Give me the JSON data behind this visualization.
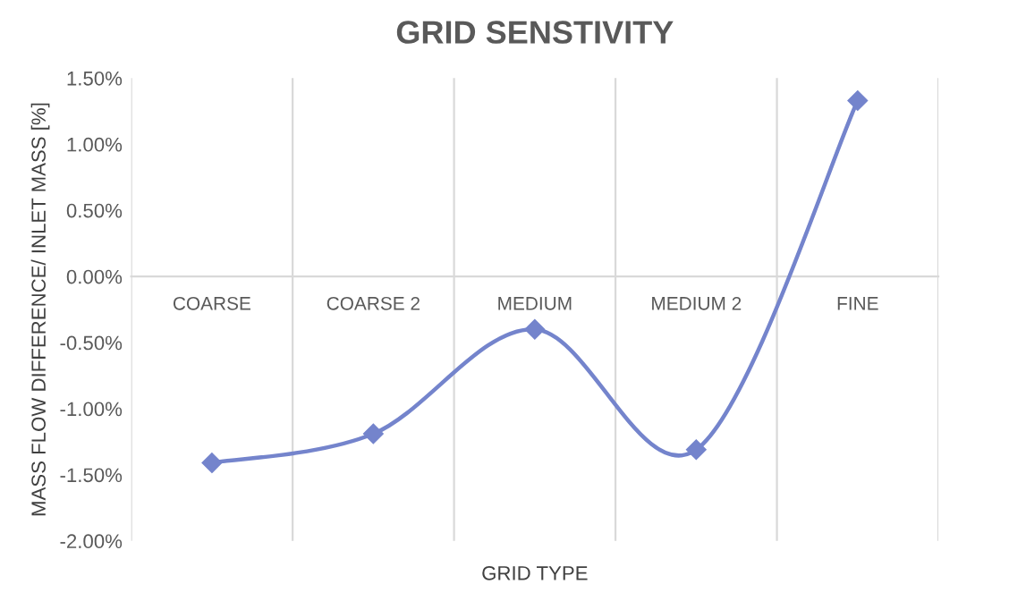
{
  "chart_data": {
    "type": "line",
    "title": "GRID SENSTIVITY",
    "xlabel": "GRID TYPE",
    "ylabel": "MASS FLOW DIFFERENCE/ INLET MASS [%]",
    "categories": [
      "COARSE",
      "COARSE 2",
      "MEDIUM",
      "MEDIUM 2",
      "FINE"
    ],
    "series": [
      {
        "color": "#7484cc",
        "values": [
          -1.41,
          -1.19,
          -0.4,
          -1.31,
          1.33
        ]
      }
    ],
    "ylim": [
      -2.0,
      1.5
    ],
    "yticks": [
      {
        "value": -2.0,
        "label": "-2.00%"
      },
      {
        "value": -1.5,
        "label": "-1.50%"
      },
      {
        "value": -1.0,
        "label": "-1.00%"
      },
      {
        "value": -0.5,
        "label": "-0.50%"
      },
      {
        "value": 0.0,
        "label": "0.00%"
      },
      {
        "value": 0.5,
        "label": "0.50%"
      },
      {
        "value": 1.0,
        "label": "1.00%"
      },
      {
        "value": 1.5,
        "label": "1.50%"
      }
    ],
    "grid": "x",
    "marker": "diamond",
    "line_style": "solid",
    "legend": false
  }
}
